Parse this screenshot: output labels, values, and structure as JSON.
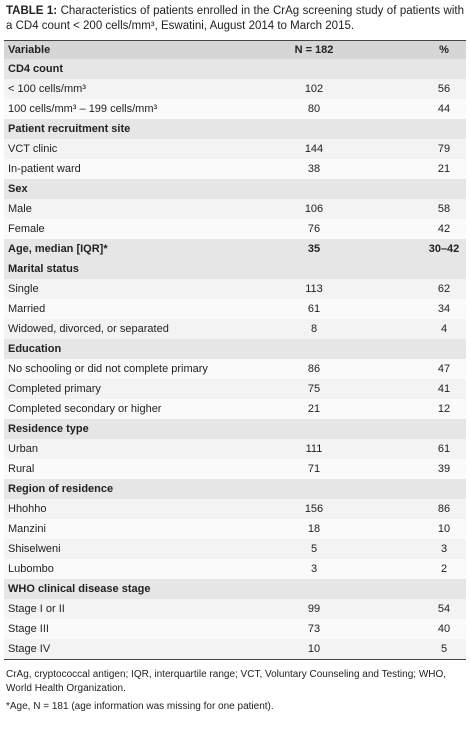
{
  "title": {
    "label": "TABLE 1:",
    "text": "Characteristics of patients enrolled in the CrAg screening study of patients with a CD4 count < 200 cells/mm³, Eswatini, August 2014 to March 2015."
  },
  "table": {
    "header": [
      "Variable",
      "N = 182",
      "%"
    ],
    "sections": [
      {
        "title": "CD4 count",
        "rows": [
          [
            "< 100 cells/mm³",
            "102",
            "56"
          ],
          [
            "100 cells/mm³ – 199 cells/mm³",
            "80",
            "44"
          ]
        ]
      },
      {
        "title": "Patient recruitment site",
        "rows": [
          [
            "VCT clinic",
            "144",
            "79"
          ],
          [
            "In-patient ward",
            "38",
            "21"
          ]
        ]
      },
      {
        "title": "Sex",
        "rows": [
          [
            "Male",
            "106",
            "58"
          ],
          [
            "Female",
            "76",
            "42"
          ]
        ]
      },
      {
        "title": "Age, median [IQR]*",
        "n": "35",
        "pct": "30–42"
      },
      {
        "title": "Marital status",
        "rows": [
          [
            "Single",
            "113",
            "62"
          ],
          [
            "Married",
            "61",
            "34"
          ],
          [
            "Widowed, divorced, or separated",
            "8",
            "4"
          ]
        ]
      },
      {
        "title": "Education",
        "rows": [
          [
            "No schooling or did not complete primary",
            "86",
            "47"
          ],
          [
            "Completed primary",
            "75",
            "41"
          ],
          [
            "Completed secondary or higher",
            "21",
            "12"
          ]
        ]
      },
      {
        "title": "Residence type",
        "rows": [
          [
            "Urban",
            "111",
            "61"
          ],
          [
            "Rural",
            "71",
            "39"
          ]
        ]
      },
      {
        "title": "Region of residence",
        "rows": [
          [
            "Hhohho",
            "156",
            "86"
          ],
          [
            "Manzini",
            "18",
            "10"
          ],
          [
            "Shiselweni",
            "5",
            "3"
          ],
          [
            "Lubombo",
            "3",
            "2"
          ]
        ]
      },
      {
        "title": "WHO clinical disease stage",
        "rows": [
          [
            "Stage I or II",
            "99",
            "54"
          ],
          [
            "Stage III",
            "73",
            "40"
          ],
          [
            "Stage IV",
            "10",
            "5"
          ]
        ]
      }
    ]
  },
  "notes": [
    "CrAg, cryptococcal antigen; IQR, interquartile range; VCT, Voluntary Counseling and Testing; WHO, World Health Organization.",
    "*Age, N = 181 (age information was missing for one patient)."
  ]
}
